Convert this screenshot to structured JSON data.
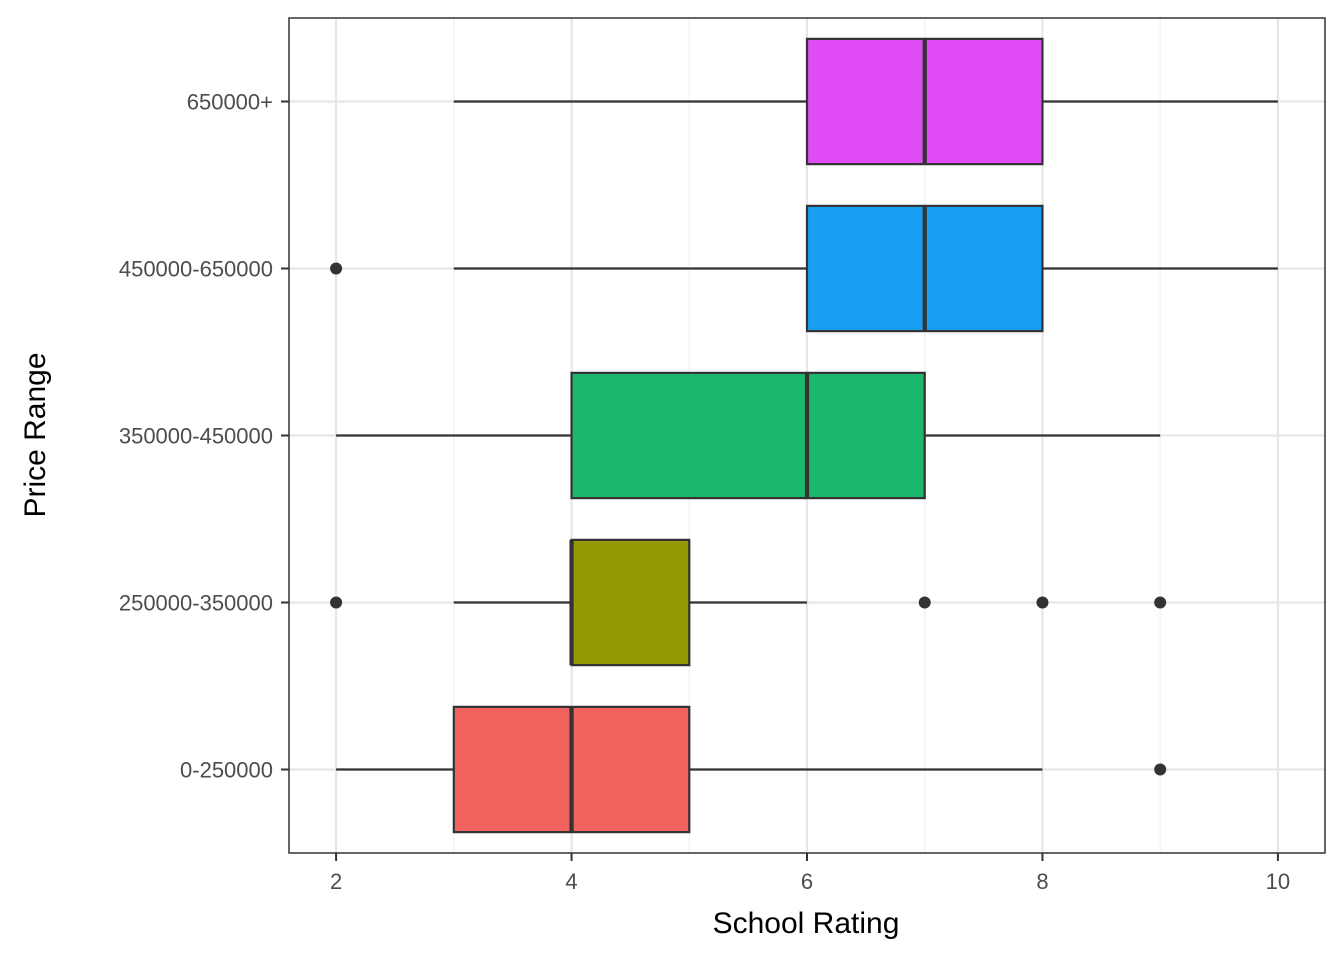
{
  "chart_data": {
    "type": "boxplot",
    "orientation": "horizontal",
    "xlabel": "School Rating",
    "ylabel": "Price Range",
    "xlim": [
      1.6,
      10.4
    ],
    "x_ticks": [
      "2",
      "4",
      "6",
      "8",
      "10"
    ],
    "grid": true,
    "legend": "none",
    "categories": [
      "0-250000",
      "250000-350000",
      "350000-450000",
      "450000-650000",
      "650000+"
    ],
    "boxes": [
      {
        "category": "0-250000",
        "whisker_low": 2,
        "q1": 3,
        "median": 4,
        "q3": 5,
        "whisker_high": 8,
        "outliers": [
          9
        ],
        "color": "#F26360"
      },
      {
        "category": "250000-350000",
        "whisker_low": 3,
        "q1": 4,
        "median": 4,
        "q3": 5,
        "whisker_high": 6,
        "outliers": [
          2,
          7,
          8,
          9
        ],
        "color": "#939A03"
      },
      {
        "category": "350000-450000",
        "whisker_low": 2,
        "q1": 4,
        "median": 6,
        "q3": 7,
        "whisker_high": 9,
        "outliers": [],
        "color": "#1BB76C"
      },
      {
        "category": "450000-650000",
        "whisker_low": 3,
        "q1": 6,
        "median": 7,
        "q3": 8,
        "whisker_high": 10,
        "outliers": [
          2
        ],
        "color": "#17A0F2"
      },
      {
        "category": "650000+",
        "whisker_low": 3,
        "q1": 6,
        "median": 7,
        "q3": 8,
        "whisker_high": 10,
        "outliers": [],
        "color": "#DF4BF5"
      }
    ]
  }
}
